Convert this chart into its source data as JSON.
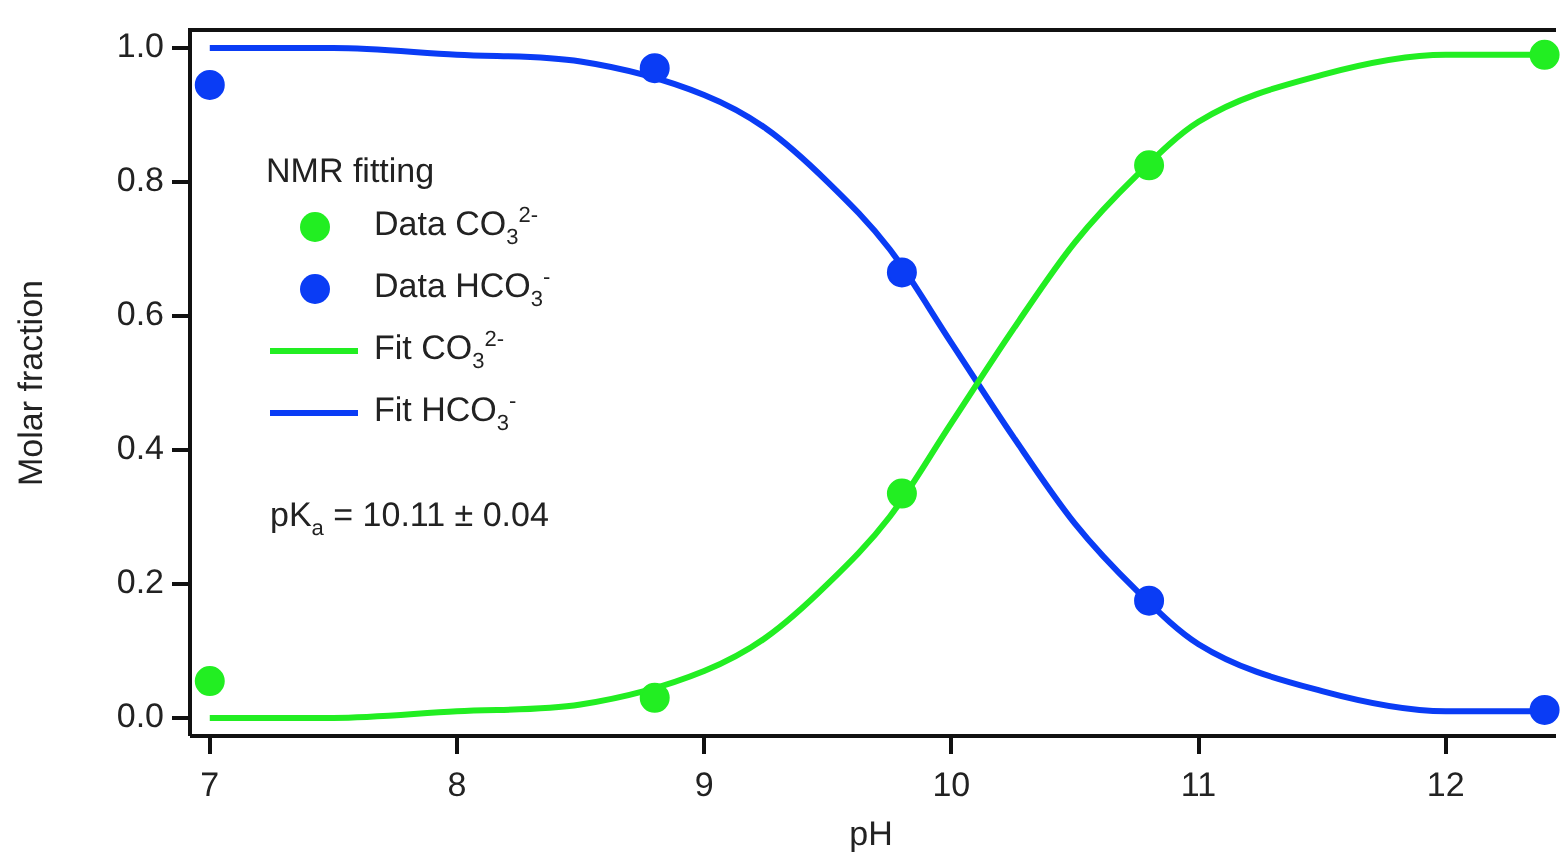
{
  "chart_data": {
    "type": "line",
    "xlabel": "pH",
    "ylabel": "Molar fraction",
    "legend_title": "NMR fitting",
    "xlim": [
      6.92,
      12.43
    ],
    "ylim": [
      -0.027,
      1.027
    ],
    "xticks": [
      7,
      8,
      9,
      10,
      11,
      12
    ],
    "yticks": [
      {
        "value": 0,
        "label": "0.0"
      },
      0.2,
      0.4,
      0.6,
      0.8,
      {
        "value": 1,
        "label": "1.0"
      }
    ],
    "grid": false,
    "legend": "top left",
    "annotations": [
      "pK$_{a}$ = 10.11 ± 0.04"
    ],
    "series": [
      {
        "name": "Data CO$_{3}$$^{2-}$",
        "type": "scatter",
        "marker": "circle",
        "color": "#22ee22",
        "x": [
          7.0,
          8.8,
          9.8,
          10.8,
          12.4
        ],
        "values": [
          0.055,
          0.03,
          0.335,
          0.825,
          0.99
        ]
      },
      {
        "name": "Data HCO$_{3}$$^{-}$",
        "type": "scatter",
        "marker": "circle",
        "color": "#0a3cf5",
        "x": [
          7.0,
          8.8,
          9.8,
          10.8,
          12.4
        ],
        "values": [
          0.945,
          0.97,
          0.665,
          0.175,
          0.012
        ]
      },
      {
        "name": "Fit CO$_{3}$$^{2-}$",
        "type": "line",
        "marker": "none",
        "color": "#22ee22",
        "x": [
          7,
          7.5,
          8,
          8.5,
          9,
          9.25,
          9.5,
          9.75,
          10,
          10.25,
          10.5,
          10.75,
          11,
          11.5,
          12,
          12.4
        ],
        "values": [
          0.0,
          0.0,
          0.01,
          0.02,
          0.07,
          0.12,
          0.2,
          0.3,
          0.44,
          0.58,
          0.71,
          0.81,
          0.89,
          0.96,
          0.99,
          0.99
        ]
      },
      {
        "name": "Fit HCO$_{3}$$^{-}$",
        "type": "line",
        "marker": "none",
        "color": "#0a3cf5",
        "x": [
          7,
          7.5,
          8,
          8.5,
          9,
          9.25,
          9.5,
          9.75,
          10,
          10.25,
          10.5,
          10.75,
          11,
          11.5,
          12,
          12.4
        ],
        "values": [
          1.0,
          1.0,
          0.99,
          0.98,
          0.93,
          0.88,
          0.8,
          0.7,
          0.56,
          0.42,
          0.29,
          0.19,
          0.11,
          0.04,
          0.01,
          0.01
        ]
      }
    ]
  }
}
